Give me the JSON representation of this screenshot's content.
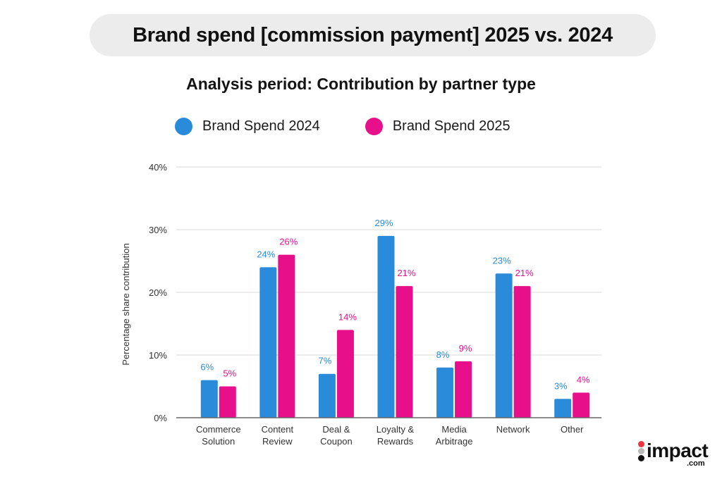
{
  "header": {
    "title": "Brand spend [commission payment] 2025 vs. 2024",
    "subtitle": "Analysis period: Contribution by partner type"
  },
  "colors": {
    "series_2024": "#2a8bdb",
    "series_2025": "#e8108a",
    "title_pill_bg": "#ececec",
    "gridline": "#d9d9d9",
    "axis": "#666666"
  },
  "logo": {
    "name": "impact",
    "suffix": ".com",
    "dot_colors": [
      "#ef3340",
      "#b8b8b8",
      "#111111"
    ]
  },
  "chart_data": {
    "type": "bar",
    "title": "Analysis period: Contribution by partner type",
    "xlabel": "",
    "ylabel": "Percentage share contribution",
    "ylim": [
      0,
      40
    ],
    "yticks": [
      0,
      10,
      20,
      30,
      40
    ],
    "ytick_labels": [
      "0%",
      "10%",
      "20%",
      "30%",
      "40%"
    ],
    "grid": true,
    "legend_position": "top-left",
    "categories": [
      [
        "Commerce",
        "Solution"
      ],
      [
        "Content",
        "Review"
      ],
      [
        "Deal &",
        "Coupon"
      ],
      [
        "Loyalty &",
        "Rewards"
      ],
      [
        "Media",
        "Arbitrage"
      ],
      [
        "Network"
      ],
      [
        "Other"
      ]
    ],
    "series": [
      {
        "name": "Brand Spend 2024",
        "color": "#2a8bdb",
        "values": [
          6,
          24,
          7,
          29,
          8,
          23,
          3
        ],
        "labels": [
          "6%",
          "24%",
          "7%",
          "29%",
          "8%",
          "23%",
          "3%"
        ]
      },
      {
        "name": "Brand Spend 2025",
        "color": "#e8108a",
        "values": [
          5,
          26,
          14,
          21,
          9,
          21,
          4
        ],
        "labels": [
          "5%",
          "26%",
          "14%",
          "21%",
          "9%",
          "21%",
          "4%"
        ]
      }
    ]
  }
}
